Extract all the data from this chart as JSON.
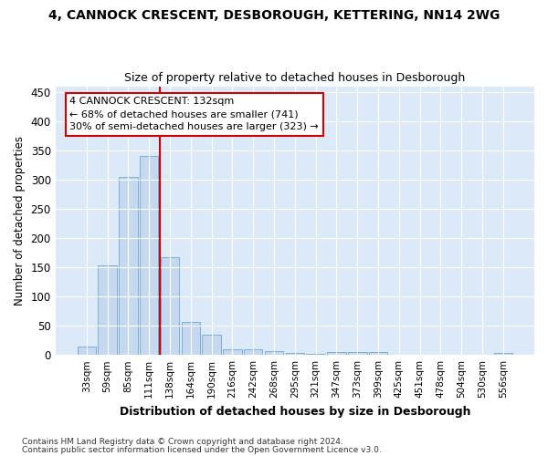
{
  "title1": "4, CANNOCK CRESCENT, DESBOROUGH, KETTERING, NN14 2WG",
  "title2": "Size of property relative to detached houses in Desborough",
  "xlabel": "Distribution of detached houses by size in Desborough",
  "ylabel": "Number of detached properties",
  "footnote1": "Contains HM Land Registry data © Crown copyright and database right 2024.",
  "footnote2": "Contains public sector information licensed under the Open Government Licence v3.0.",
  "bar_labels": [
    "33sqm",
    "59sqm",
    "85sqm",
    "111sqm",
    "138sqm",
    "164sqm",
    "190sqm",
    "216sqm",
    "242sqm",
    "268sqm",
    "295sqm",
    "321sqm",
    "347sqm",
    "373sqm",
    "399sqm",
    "425sqm",
    "451sqm",
    "478sqm",
    "504sqm",
    "530sqm",
    "556sqm"
  ],
  "bar_values": [
    15,
    153,
    305,
    340,
    167,
    57,
    34,
    10,
    9,
    6,
    3,
    2,
    5,
    5,
    5,
    0,
    0,
    0,
    0,
    0,
    4
  ],
  "bar_color": "#c5d8f0",
  "bar_edgecolor": "#7bafd4",
  "figure_bg": "#ffffff",
  "axes_bg": "#dce9f7",
  "grid_color": "#ffffff",
  "vline_color": "#cc0000",
  "vline_x": 3.5,
  "annotation_text1": "4 CANNOCK CRESCENT: 132sqm",
  "annotation_text2": "← 68% of detached houses are smaller (741)",
  "annotation_text3": "30% of semi-detached houses are larger (323) →",
  "ann_box_fc": "#ffffff",
  "ann_box_ec": "#cc0000",
  "ylim": [
    0,
    460
  ],
  "yticks": [
    0,
    50,
    100,
    150,
    200,
    250,
    300,
    350,
    400,
    450
  ]
}
